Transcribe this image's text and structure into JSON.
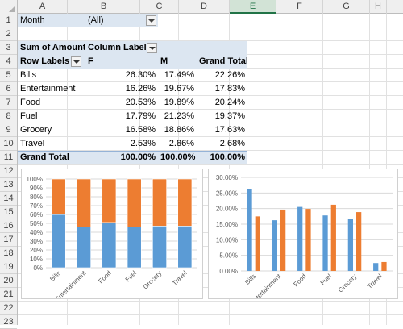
{
  "columns": [
    "A",
    "B",
    "C",
    "D",
    "E",
    "F",
    "G",
    "H"
  ],
  "selected_column": "E",
  "rows": [
    "1",
    "2",
    "3",
    "4",
    "5",
    "6",
    "7",
    "8",
    "9",
    "10",
    "11",
    "12",
    "13",
    "14",
    "15",
    "16",
    "17",
    "18",
    "19",
    "20",
    "21",
    "22",
    "23"
  ],
  "filter": {
    "label": "Month",
    "value": "(All)"
  },
  "pivot": {
    "sum_label": "Sum of Amount",
    "col_labels": "Column Labels",
    "row_labels": "Row Labels",
    "col_f": "F",
    "col_m": "M",
    "col_total": "Grand Total",
    "items": [
      {
        "label": "Bills",
        "f": "26.30%",
        "m": "17.49%",
        "t": "22.26%"
      },
      {
        "label": "Entertainment",
        "f": "16.26%",
        "m": "19.67%",
        "t": "17.83%"
      },
      {
        "label": "Food",
        "f": "20.53%",
        "m": "19.89%",
        "t": "20.24%"
      },
      {
        "label": "Fuel",
        "f": "17.79%",
        "m": "21.23%",
        "t": "19.37%"
      },
      {
        "label": "Grocery",
        "f": "16.58%",
        "m": "18.86%",
        "t": "17.63%"
      },
      {
        "label": "Travel",
        "f": "2.53%",
        "m": "2.86%",
        "t": "2.68%"
      }
    ],
    "grand": {
      "label": "Grand Total",
      "f": "100.00%",
      "m": "100.00%",
      "t": "100.00%"
    }
  },
  "colors": {
    "series_f": "#5b9bd5",
    "series_m": "#ed7d31",
    "header_band": "#dce6f1"
  },
  "chart_data": [
    {
      "type": "bar",
      "stacked": "percent",
      "categories": [
        "Bills",
        "Entertainment",
        "Food",
        "Fuel",
        "Grocery",
        "Travel"
      ],
      "series": [
        {
          "values": [
            60,
            46,
            51,
            46,
            47,
            47
          ]
        },
        {
          "values": [
            40,
            54,
            49,
            54,
            53,
            53
          ]
        }
      ],
      "yticks": [
        "0%",
        "10%",
        "20%",
        "30%",
        "40%",
        "50%",
        "60%",
        "70%",
        "80%",
        "90%",
        "100%"
      ],
      "ylim": [
        0,
        100
      ],
      "grid": true
    },
    {
      "type": "bar",
      "categories": [
        "Bills",
        "Entertainment",
        "Food",
        "Fuel",
        "Grocery",
        "Travel"
      ],
      "series": [
        {
          "values": [
            26.3,
            16.26,
            20.53,
            17.79,
            16.58,
            2.53
          ]
        },
        {
          "values": [
            17.49,
            19.67,
            19.89,
            21.23,
            18.86,
            2.86
          ]
        }
      ],
      "yticks": [
        "0.00%",
        "5.00%",
        "10.00%",
        "15.00%",
        "20.00%",
        "25.00%",
        "30.00%"
      ],
      "ylim": [
        0,
        30
      ],
      "grid": true
    }
  ]
}
